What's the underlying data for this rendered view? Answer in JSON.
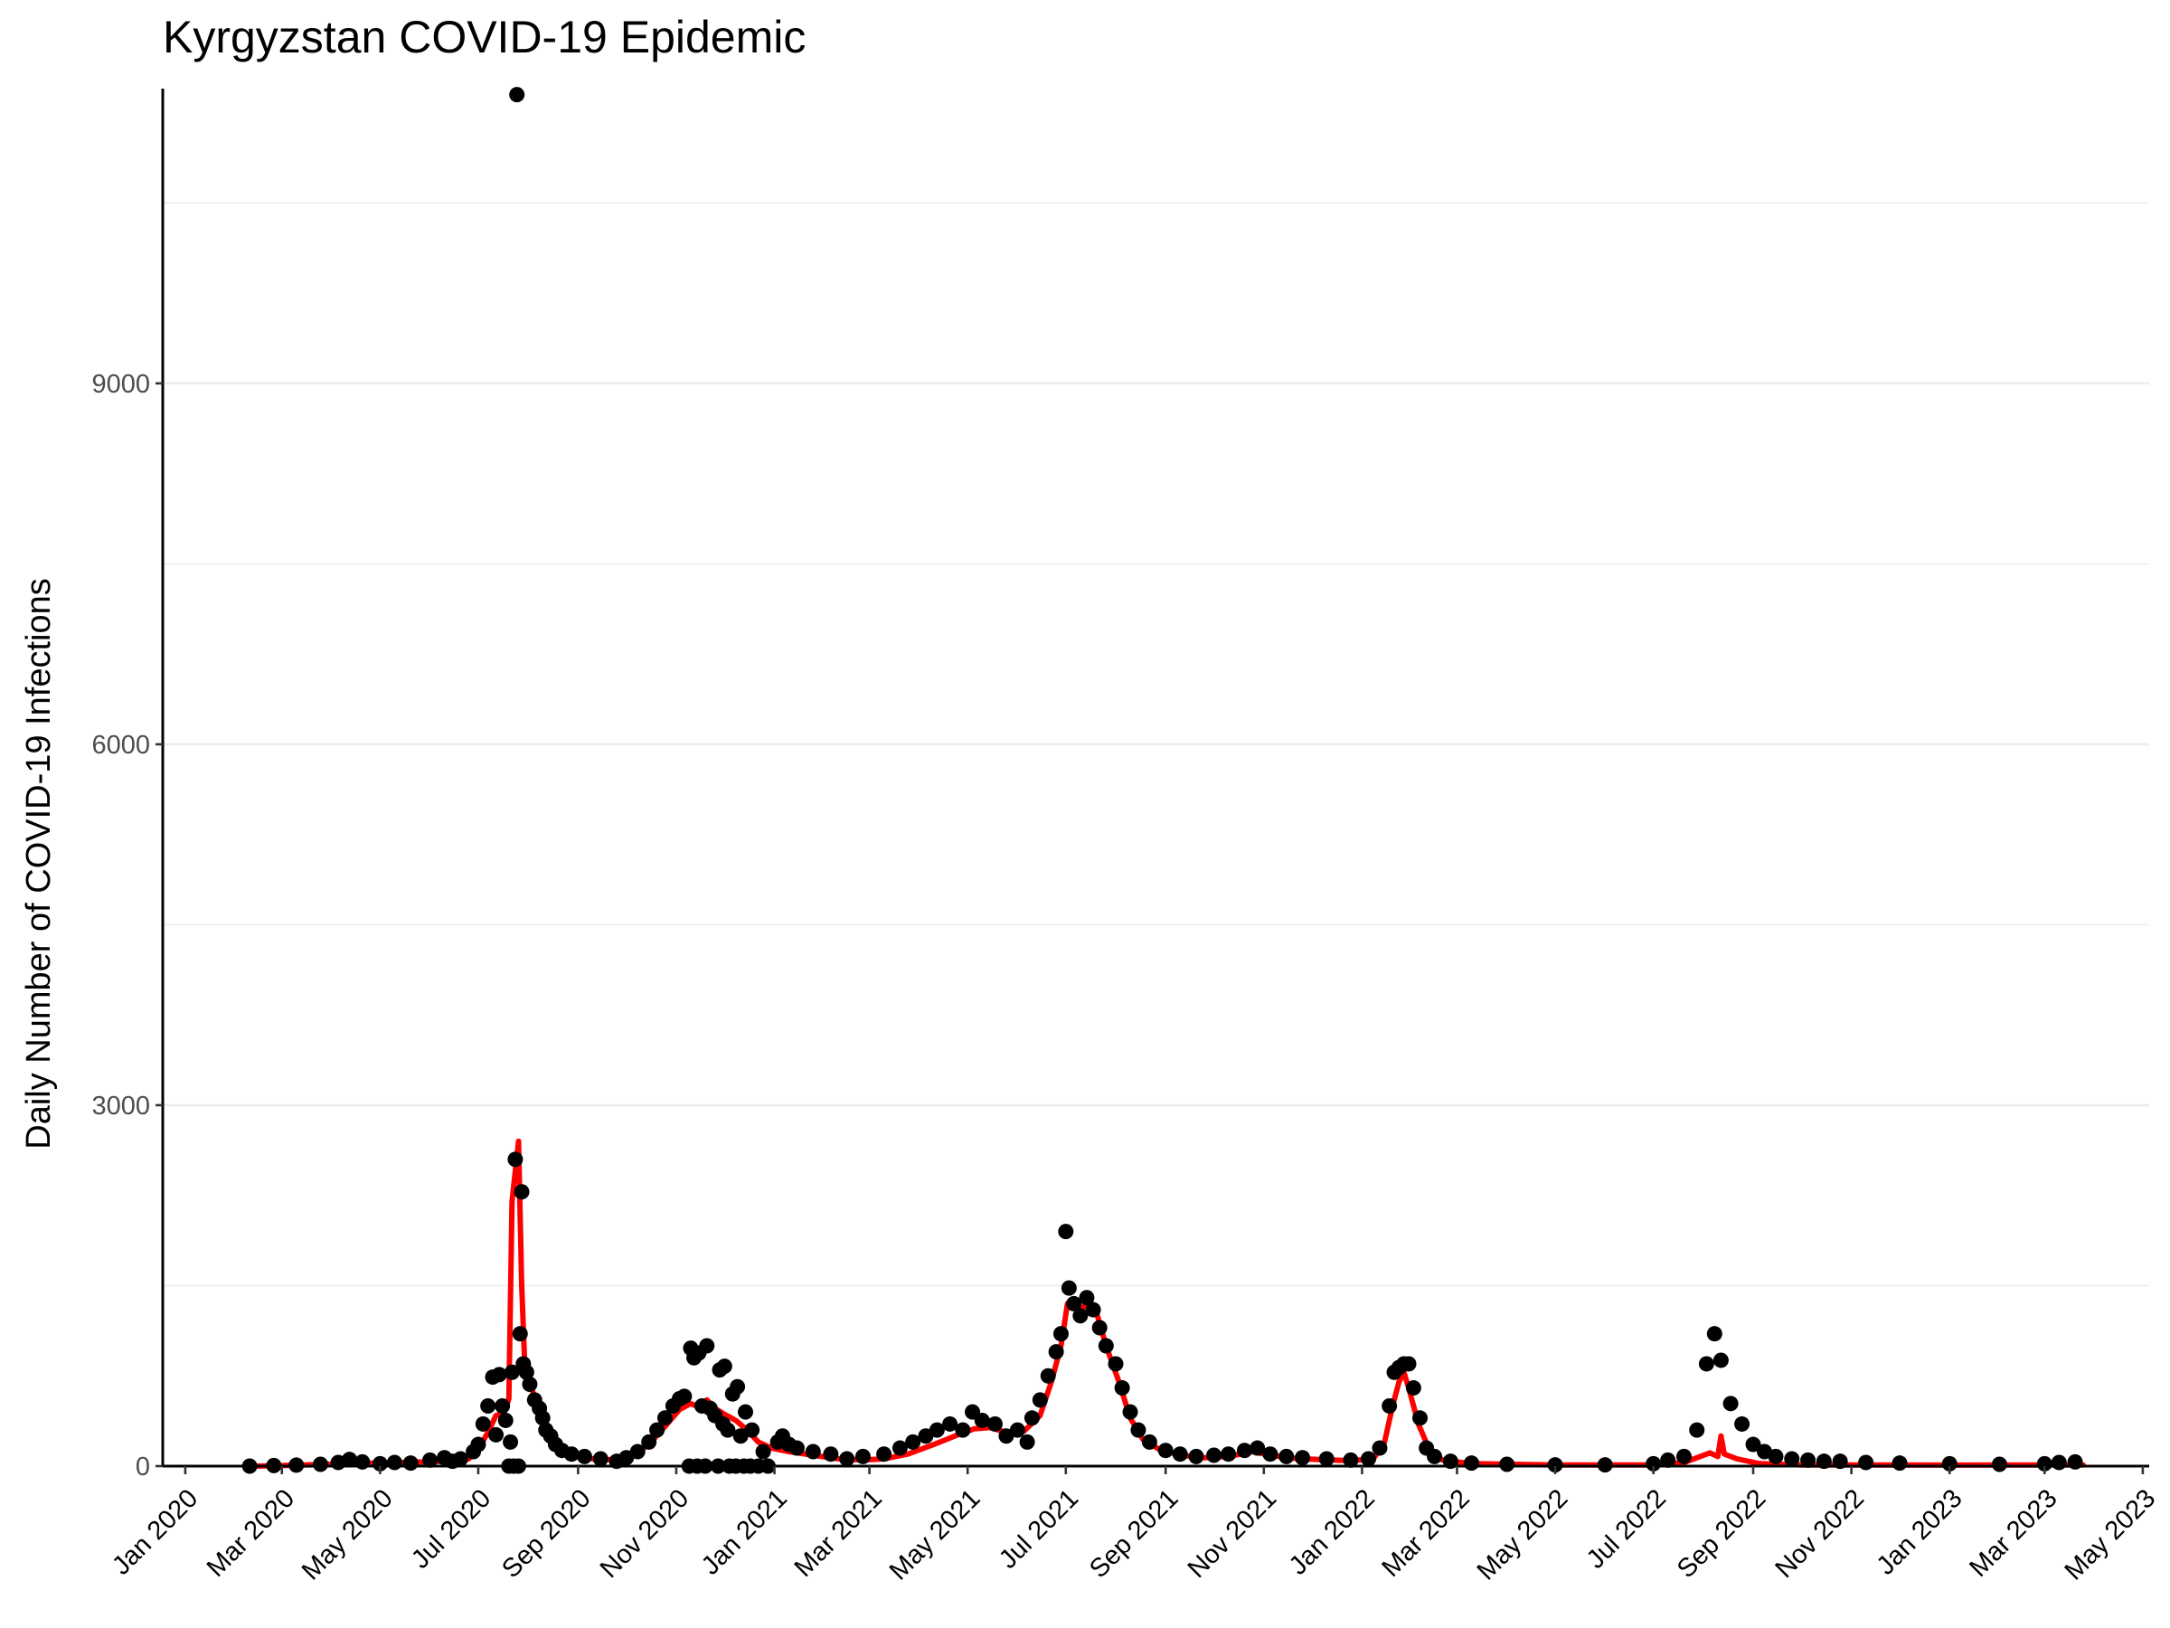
{
  "chart_data": {
    "type": "scatter",
    "title": "Kyrgyzstan COVID-19 Epidemic",
    "xlabel": "",
    "ylabel": "Daily Number of COVID-19 Infections",
    "xlim": [
      "2019-12-18",
      "2023-05-05"
    ],
    "ylim": [
      0,
      11450
    ],
    "y_ticks": [
      0,
      3000,
      6000,
      9000
    ],
    "y_tick_labels": [
      "0",
      "3000",
      "6000",
      "9000"
    ],
    "x_ticks": [
      "2020-01-01",
      "2020-03-01",
      "2020-05-01",
      "2020-07-01",
      "2020-09-01",
      "2020-11-01",
      "2021-01-01",
      "2021-03-01",
      "2021-05-01",
      "2021-07-01",
      "2021-09-01",
      "2021-11-01",
      "2022-01-01",
      "2022-03-01",
      "2022-05-01",
      "2022-07-01",
      "2022-09-01",
      "2022-11-01",
      "2023-01-01",
      "2023-03-01",
      "2023-05-01"
    ],
    "x_tick_labels": [
      "Jan 2020",
      "Mar 2020",
      "May 2020",
      "Jul 2020",
      "Sep 2020",
      "Nov 2020",
      "Jan 2021",
      "Mar 2021",
      "May 2021",
      "Jul 2021",
      "Sep 2021",
      "Nov 2021",
      "Jan 2022",
      "Mar 2022",
      "May 2022",
      "Jul 2022",
      "Sep 2022",
      "Nov 2022",
      "Jan 2023",
      "Mar 2023",
      "May 2023"
    ],
    "grid": "horizontal",
    "series": [
      {
        "kind": "points",
        "color": "#000000",
        "points": [
          [
            "2020-02-10",
            0
          ],
          [
            "2020-02-25",
            5
          ],
          [
            "2020-03-10",
            8
          ],
          [
            "2020-03-25",
            15
          ],
          [
            "2020-04-05",
            30
          ],
          [
            "2020-04-12",
            55
          ],
          [
            "2020-04-20",
            35
          ],
          [
            "2020-05-01",
            20
          ],
          [
            "2020-05-10",
            30
          ],
          [
            "2020-05-20",
            25
          ],
          [
            "2020-06-01",
            50
          ],
          [
            "2020-06-10",
            70
          ],
          [
            "2020-06-15",
            40
          ],
          [
            "2020-06-20",
            60
          ],
          [
            "2020-06-28",
            120
          ],
          [
            "2020-07-01",
            180
          ],
          [
            "2020-07-04",
            350
          ],
          [
            "2020-07-07",
            500
          ],
          [
            "2020-07-10",
            740
          ],
          [
            "2020-07-12",
            260
          ],
          [
            "2020-07-14",
            760
          ],
          [
            "2020-07-16",
            500
          ],
          [
            "2020-07-18",
            380
          ],
          [
            "2020-07-20",
            0
          ],
          [
            "2020-07-21",
            200
          ],
          [
            "2020-07-22",
            780
          ],
          [
            "2020-07-23",
            0
          ],
          [
            "2020-07-24",
            2550
          ],
          [
            "2020-07-25",
            11400
          ],
          [
            "2020-07-26",
            0
          ],
          [
            "2020-07-27",
            1100
          ],
          [
            "2020-07-28",
            2280
          ],
          [
            "2020-07-29",
            850
          ],
          [
            "2020-07-31",
            780
          ],
          [
            "2020-08-02",
            680
          ],
          [
            "2020-08-05",
            550
          ],
          [
            "2020-08-08",
            480
          ],
          [
            "2020-08-10",
            400
          ],
          [
            "2020-08-12",
            300
          ],
          [
            "2020-08-15",
            250
          ],
          [
            "2020-08-18",
            180
          ],
          [
            "2020-08-22",
            130
          ],
          [
            "2020-08-28",
            100
          ],
          [
            "2020-09-05",
            80
          ],
          [
            "2020-09-15",
            60
          ],
          [
            "2020-09-25",
            40
          ],
          [
            "2020-10-01",
            70
          ],
          [
            "2020-10-08",
            120
          ],
          [
            "2020-10-15",
            200
          ],
          [
            "2020-10-20",
            300
          ],
          [
            "2020-10-25",
            400
          ],
          [
            "2020-10-30",
            500
          ],
          [
            "2020-11-03",
            560
          ],
          [
            "2020-11-06",
            580
          ],
          [
            "2020-11-09",
            0
          ],
          [
            "2020-11-10",
            980
          ],
          [
            "2020-11-12",
            900
          ],
          [
            "2020-11-14",
            0
          ],
          [
            "2020-11-15",
            940
          ],
          [
            "2020-11-17",
            500
          ],
          [
            "2020-11-19",
            0
          ],
          [
            "2020-11-20",
            1000
          ],
          [
            "2020-11-22",
            480
          ],
          [
            "2020-11-25",
            420
          ],
          [
            "2020-11-27",
            0
          ],
          [
            "2020-11-28",
            800
          ],
          [
            "2020-11-30",
            350
          ],
          [
            "2020-12-01",
            830
          ],
          [
            "2020-12-03",
            300
          ],
          [
            "2020-12-04",
            0
          ],
          [
            "2020-12-06",
            600
          ],
          [
            "2020-12-08",
            0
          ],
          [
            "2020-12-09",
            660
          ],
          [
            "2020-12-11",
            250
          ],
          [
            "2020-12-13",
            0
          ],
          [
            "2020-12-14",
            450
          ],
          [
            "2020-12-17",
            0
          ],
          [
            "2020-12-18",
            300
          ],
          [
            "2020-12-22",
            0
          ],
          [
            "2020-12-25",
            120
          ],
          [
            "2020-12-28",
            0
          ],
          [
            "2021-01-03",
            200
          ],
          [
            "2021-01-06",
            250
          ],
          [
            "2021-01-10",
            180
          ],
          [
            "2021-01-15",
            150
          ],
          [
            "2021-01-25",
            120
          ],
          [
            "2021-02-05",
            100
          ],
          [
            "2021-02-15",
            60
          ],
          [
            "2021-02-25",
            80
          ],
          [
            "2021-03-10",
            100
          ],
          [
            "2021-03-20",
            150
          ],
          [
            "2021-03-28",
            200
          ],
          [
            "2021-04-05",
            250
          ],
          [
            "2021-04-12",
            300
          ],
          [
            "2021-04-20",
            350
          ],
          [
            "2021-04-28",
            300
          ],
          [
            "2021-05-04",
            450
          ],
          [
            "2021-05-10",
            380
          ],
          [
            "2021-05-18",
            350
          ],
          [
            "2021-05-25",
            250
          ],
          [
            "2021-06-01",
            300
          ],
          [
            "2021-06-07",
            200
          ],
          [
            "2021-06-10",
            400
          ],
          [
            "2021-06-15",
            550
          ],
          [
            "2021-06-20",
            750
          ],
          [
            "2021-06-25",
            950
          ],
          [
            "2021-06-28",
            1100
          ],
          [
            "2021-07-01",
            1950
          ],
          [
            "2021-07-03",
            1480
          ],
          [
            "2021-07-06",
            1350
          ],
          [
            "2021-07-10",
            1250
          ],
          [
            "2021-07-14",
            1400
          ],
          [
            "2021-07-18",
            1300
          ],
          [
            "2021-07-22",
            1150
          ],
          [
            "2021-07-26",
            1000
          ],
          [
            "2021-08-01",
            850
          ],
          [
            "2021-08-05",
            650
          ],
          [
            "2021-08-10",
            450
          ],
          [
            "2021-08-15",
            300
          ],
          [
            "2021-08-22",
            200
          ],
          [
            "2021-09-01",
            130
          ],
          [
            "2021-09-10",
            100
          ],
          [
            "2021-09-20",
            80
          ],
          [
            "2021-10-01",
            90
          ],
          [
            "2021-10-10",
            100
          ],
          [
            "2021-10-20",
            130
          ],
          [
            "2021-10-28",
            150
          ],
          [
            "2021-11-05",
            100
          ],
          [
            "2021-11-15",
            80
          ],
          [
            "2021-11-25",
            70
          ],
          [
            "2021-12-10",
            60
          ],
          [
            "2021-12-25",
            50
          ],
          [
            "2022-01-05",
            60
          ],
          [
            "2022-01-12",
            150
          ],
          [
            "2022-01-18",
            500
          ],
          [
            "2022-01-21",
            780
          ],
          [
            "2022-01-24",
            820
          ],
          [
            "2022-01-27",
            850
          ],
          [
            "2022-01-30",
            850
          ],
          [
            "2022-02-02",
            650
          ],
          [
            "2022-02-06",
            400
          ],
          [
            "2022-02-10",
            150
          ],
          [
            "2022-02-15",
            80
          ],
          [
            "2022-02-25",
            40
          ],
          [
            "2022-03-10",
            25
          ],
          [
            "2022-04-01",
            15
          ],
          [
            "2022-05-01",
            10
          ],
          [
            "2022-06-01",
            10
          ],
          [
            "2022-07-01",
            20
          ],
          [
            "2022-07-10",
            50
          ],
          [
            "2022-07-20",
            80
          ],
          [
            "2022-07-28",
            300
          ],
          [
            "2022-08-03",
            850
          ],
          [
            "2022-08-08",
            1100
          ],
          [
            "2022-08-12",
            880
          ],
          [
            "2022-08-18",
            520
          ],
          [
            "2022-08-25",
            350
          ],
          [
            "2022-09-01",
            180
          ],
          [
            "2022-09-08",
            120
          ],
          [
            "2022-09-15",
            80
          ],
          [
            "2022-09-25",
            60
          ],
          [
            "2022-10-05",
            50
          ],
          [
            "2022-10-15",
            40
          ],
          [
            "2022-10-25",
            40
          ],
          [
            "2022-11-10",
            30
          ],
          [
            "2022-12-01",
            25
          ],
          [
            "2023-01-01",
            20
          ],
          [
            "2023-02-01",
            15
          ],
          [
            "2023-03-01",
            20
          ],
          [
            "2023-03-10",
            30
          ],
          [
            "2023-03-20",
            35
          ]
        ]
      },
      {
        "kind": "line",
        "color": "#ff0000",
        "points": [
          [
            "2020-02-15",
            0
          ],
          [
            "2020-03-15",
            10
          ],
          [
            "2020-04-15",
            20
          ],
          [
            "2020-05-15",
            30
          ],
          [
            "2020-06-10",
            40
          ],
          [
            "2020-06-25",
            60
          ],
          [
            "2020-07-01",
            140
          ],
          [
            "2020-07-07",
            280
          ],
          [
            "2020-07-12",
            420
          ],
          [
            "2020-07-17",
            440
          ],
          [
            "2020-07-20",
            560
          ],
          [
            "2020-07-22",
            2200
          ],
          [
            "2020-07-24",
            2450
          ],
          [
            "2020-07-26",
            2700
          ],
          [
            "2020-07-28",
            1500
          ],
          [
            "2020-07-30",
            800
          ],
          [
            "2020-08-03",
            650
          ],
          [
            "2020-08-08",
            470
          ],
          [
            "2020-08-13",
            320
          ],
          [
            "2020-08-20",
            170
          ],
          [
            "2020-08-28",
            100
          ],
          [
            "2020-09-10",
            60
          ],
          [
            "2020-09-25",
            50
          ],
          [
            "2020-10-05",
            90
          ],
          [
            "2020-10-15",
            180
          ],
          [
            "2020-10-25",
            330
          ],
          [
            "2020-11-03",
            470
          ],
          [
            "2020-11-10",
            520
          ],
          [
            "2020-11-15",
            490
          ],
          [
            "2020-11-20",
            550
          ],
          [
            "2020-11-25",
            480
          ],
          [
            "2020-12-01",
            430
          ],
          [
            "2020-12-08",
            380
          ],
          [
            "2020-12-15",
            300
          ],
          [
            "2020-12-22",
            200
          ],
          [
            "2020-12-30",
            150
          ],
          [
            "2021-01-10",
            120
          ],
          [
            "2021-01-25",
            90
          ],
          [
            "2021-02-10",
            60
          ],
          [
            "2021-02-25",
            50
          ],
          [
            "2021-03-10",
            60
          ],
          [
            "2021-03-25",
            100
          ],
          [
            "2021-04-10",
            180
          ],
          [
            "2021-04-25",
            260
          ],
          [
            "2021-05-05",
            310
          ],
          [
            "2021-05-15",
            320
          ],
          [
            "2021-05-25",
            280
          ],
          [
            "2021-06-05",
            290
          ],
          [
            "2021-06-15",
            420
          ],
          [
            "2021-06-22",
            700
          ],
          [
            "2021-06-28",
            1000
          ],
          [
            "2021-07-02",
            1350
          ],
          [
            "2021-07-06",
            1380
          ],
          [
            "2021-07-10",
            1300
          ],
          [
            "2021-07-15",
            1360
          ],
          [
            "2021-07-20",
            1280
          ],
          [
            "2021-07-26",
            1000
          ],
          [
            "2021-08-03",
            700
          ],
          [
            "2021-08-10",
            400
          ],
          [
            "2021-08-18",
            220
          ],
          [
            "2021-08-28",
            140
          ],
          [
            "2021-09-10",
            90
          ],
          [
            "2021-09-25",
            70
          ],
          [
            "2021-10-10",
            80
          ],
          [
            "2021-10-25",
            120
          ],
          [
            "2021-11-05",
            90
          ],
          [
            "2021-11-20",
            65
          ],
          [
            "2021-12-05",
            55
          ],
          [
            "2021-12-25",
            45
          ],
          [
            "2022-01-08",
            60
          ],
          [
            "2022-01-15",
            200
          ],
          [
            "2022-01-20",
            500
          ],
          [
            "2022-01-24",
            700
          ],
          [
            "2022-01-27",
            780
          ],
          [
            "2022-01-30",
            650
          ],
          [
            "2022-02-05",
            350
          ],
          [
            "2022-02-12",
            130
          ],
          [
            "2022-02-20",
            50
          ],
          [
            "2022-03-10",
            20
          ],
          [
            "2022-05-01",
            10
          ],
          [
            "2022-07-01",
            10
          ],
          [
            "2022-07-20",
            30
          ],
          [
            "2022-07-30",
            80
          ],
          [
            "2022-08-05",
            110
          ],
          [
            "2022-08-10",
            80
          ],
          [
            "2022-08-12",
            250
          ],
          [
            "2022-08-14",
            100
          ],
          [
            "2022-08-22",
            60
          ],
          [
            "2022-09-05",
            20
          ],
          [
            "2022-10-01",
            10
          ],
          [
            "2023-01-01",
            8
          ],
          [
            "2023-03-25",
            10
          ]
        ]
      }
    ]
  }
}
